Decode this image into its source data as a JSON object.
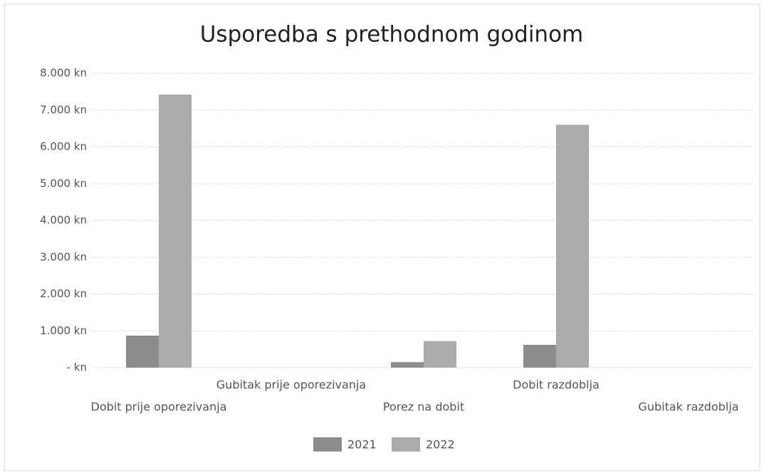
{
  "chart_data": {
    "type": "bar",
    "title": "Usporedba s prethodnom godinom",
    "categories": [
      "Dobit prije oporezivanja",
      "Gubitak prije oporezivanja",
      "Porez na dobit",
      "Dobit razdoblja",
      "Gubitak razdoblja"
    ],
    "series": [
      {
        "name": "2021",
        "color": "#8c8c8c",
        "values": [
          870,
          0,
          150,
          620,
          0
        ]
      },
      {
        "name": "2022",
        "color": "#ababab",
        "values": [
          7420,
          0,
          720,
          6600,
          0
        ]
      }
    ],
    "ylim": [
      0,
      8000
    ],
    "yticks": [
      {
        "value": 0,
        "label": "- kn"
      },
      {
        "value": 1000,
        "label": "1.000 kn"
      },
      {
        "value": 2000,
        "label": "2.000 kn"
      },
      {
        "value": 3000,
        "label": "3.000 kn"
      },
      {
        "value": 4000,
        "label": "4.000 kn"
      },
      {
        "value": 5000,
        "label": "5.000 kn"
      },
      {
        "value": 6000,
        "label": "6.000 kn"
      },
      {
        "value": 7000,
        "label": "7.000 kn"
      },
      {
        "value": 8000,
        "label": "8.000 kn"
      }
    ],
    "grid": true,
    "legend": "bottom"
  }
}
